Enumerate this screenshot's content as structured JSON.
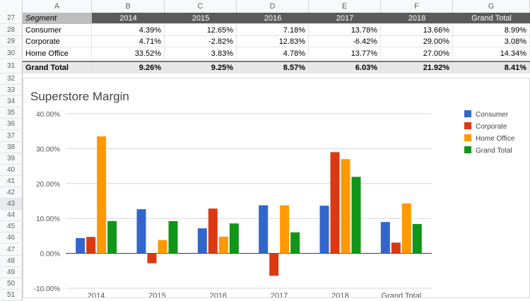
{
  "column_headers": [
    "A",
    "B",
    "C",
    "D",
    "E",
    "F",
    "G"
  ],
  "row_numbers": [
    "27",
    "28",
    "29",
    "30",
    "31",
    "32",
    "33",
    "34",
    "35",
    "36",
    "37",
    "38",
    "39",
    "40",
    "41",
    "42",
    "43",
    "44",
    "45",
    "46",
    "47",
    "48",
    "49",
    "50",
    "51"
  ],
  "selected_row": "43",
  "table": {
    "header": [
      "Segment",
      "2014",
      "2015",
      "2016",
      "2017",
      "2018",
      "Grand Total"
    ],
    "rows": [
      [
        "Consumer",
        "4.39%",
        "12.65%",
        "7.18%",
        "13.78%",
        "13.66%",
        "8.99%"
      ],
      [
        "Corporate",
        "4.71%",
        "-2.82%",
        "12.83%",
        "-6.42%",
        "29.00%",
        "3.08%"
      ],
      [
        "Home Office",
        "33.52%",
        "3.83%",
        "4.78%",
        "13.77%",
        "27.00%",
        "14.34%"
      ]
    ],
    "total": [
      "Grand Total",
      "9.26%",
      "9.25%",
      "8.57%",
      "6.03%",
      "21.92%",
      "8.41%"
    ]
  },
  "chart_data": {
    "type": "bar",
    "title": "Superstore Margin",
    "categories": [
      "2014",
      "2015",
      "2016",
      "2017",
      "2018",
      "Grand Total"
    ],
    "series": [
      {
        "name": "Consumer",
        "color": "#3366cc",
        "values": [
          4.39,
          12.65,
          7.18,
          13.78,
          13.66,
          8.99
        ]
      },
      {
        "name": "Corporate",
        "color": "#dc3912",
        "values": [
          4.71,
          -2.82,
          12.83,
          -6.42,
          29.0,
          3.08
        ]
      },
      {
        "name": "Home Office",
        "color": "#ff9900",
        "values": [
          33.52,
          3.83,
          4.78,
          13.77,
          27.0,
          14.34
        ]
      },
      {
        "name": "Grand Total",
        "color": "#109618",
        "values": [
          9.26,
          9.25,
          8.57,
          6.03,
          21.92,
          8.41
        ]
      }
    ],
    "ylim": [
      -10,
      40
    ],
    "yticks": [
      "40.00%",
      "30.00%",
      "20.00%",
      "10.00%",
      "0.00%",
      "-10.00%"
    ],
    "ytick_values": [
      40,
      30,
      20,
      10,
      0,
      -10
    ],
    "grid": true,
    "legend": "right"
  }
}
